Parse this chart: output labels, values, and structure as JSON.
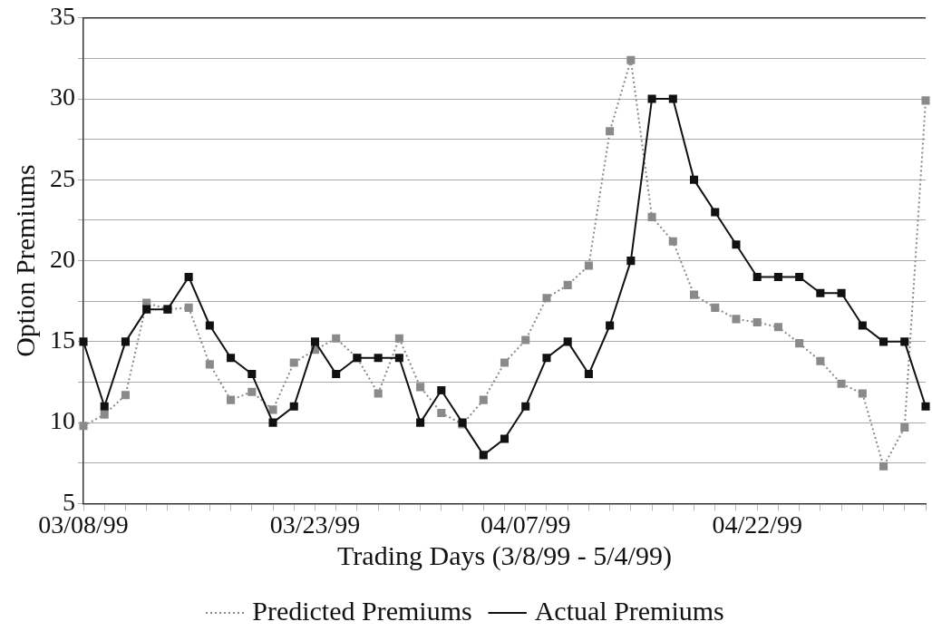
{
  "chart_data": {
    "type": "line",
    "xlabel": "Trading Days (3/8/99 - 5/4/99)",
    "ylabel": "Option Premiums",
    "categories": [
      "03/08/99",
      null,
      null,
      null,
      null,
      null,
      null,
      null,
      null,
      null,
      null,
      "03/23/99",
      null,
      null,
      null,
      null,
      null,
      null,
      null,
      null,
      null,
      "04/07/99",
      null,
      null,
      null,
      null,
      null,
      null,
      null,
      null,
      null,
      null,
      "04/22/99",
      null,
      null,
      null,
      null,
      null,
      null,
      null,
      null
    ],
    "series": [
      {
        "name": "Predicted Premiums",
        "color": "#8a8a8a",
        "line_style": "dotted",
        "values": [
          9.8,
          10.5,
          11.7,
          17.4,
          17,
          17.1,
          13.6,
          11.4,
          11.9,
          10.8,
          13.7,
          14.5,
          15.2,
          14,
          11.8,
          15.2,
          12.2,
          10.6,
          9.9,
          11.4,
          13.7,
          15.1,
          17.7,
          18.5,
          19.7,
          28,
          32.4,
          22.7,
          21.2,
          17.9,
          17.1,
          16.4,
          16.2,
          15.9,
          14.9,
          13.8,
          12.4,
          11.8,
          7.3,
          9.7,
          29.9
        ]
      },
      {
        "name": "Actual Premiums",
        "color": "#111111",
        "line_style": "solid",
        "values": [
          15,
          11,
          15,
          17,
          17,
          19,
          16,
          14,
          13,
          10,
          11,
          15,
          13,
          14,
          14,
          14,
          10,
          12,
          10,
          8,
          9,
          11,
          14,
          15,
          13,
          16,
          20,
          30,
          30,
          25,
          23,
          21,
          19,
          19,
          19,
          18,
          18,
          16,
          15,
          15,
          11
        ]
      }
    ],
    "ylim": [
      5,
      35
    ],
    "yticks": [
      5,
      {
        "value": 7.5,
        "label": null
      },
      10,
      {
        "value": 12.5,
        "label": null
      },
      15,
      {
        "value": 17.5,
        "label": null
      },
      20,
      {
        "value": 22.5,
        "label": null
      },
      25,
      {
        "value": 27.5,
        "label": null
      },
      30,
      {
        "value": 32.5,
        "label": null
      },
      35
    ],
    "grid": "y",
    "legend": "bottom",
    "marker": "square"
  }
}
